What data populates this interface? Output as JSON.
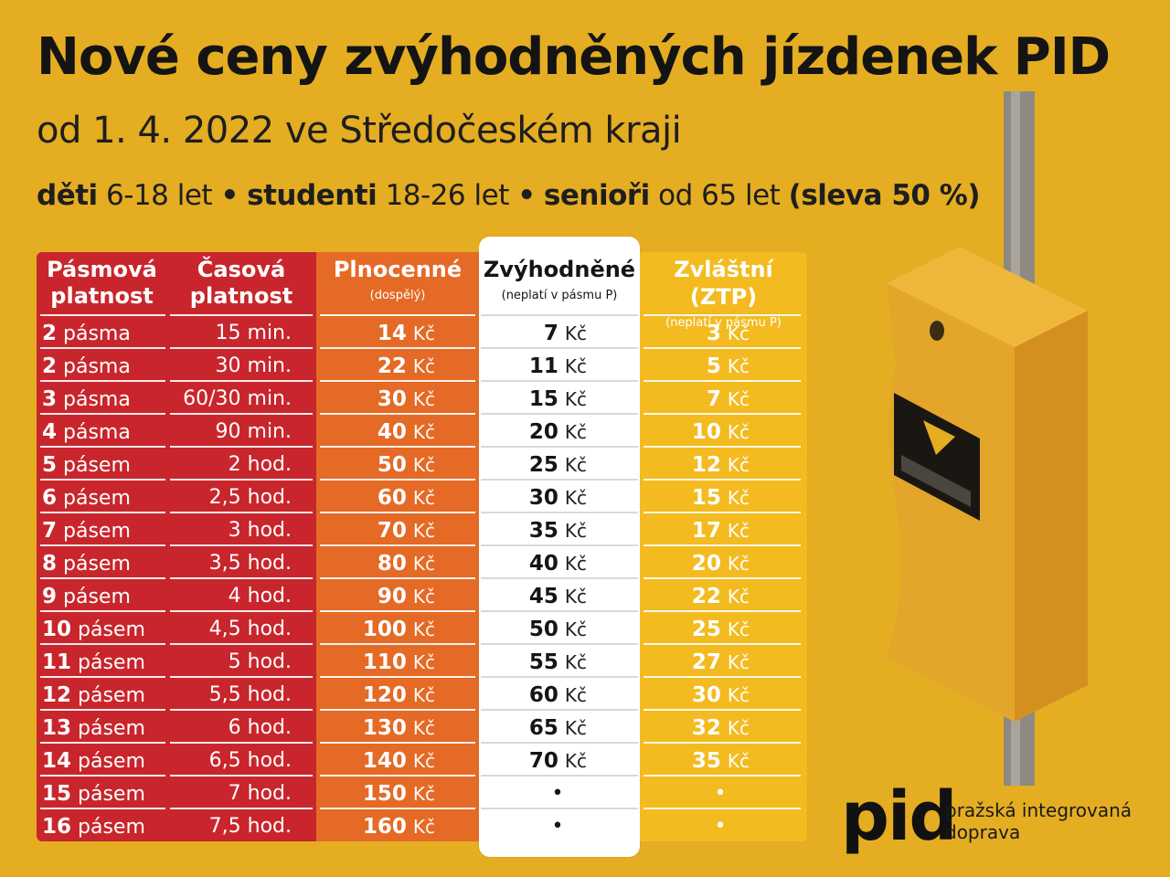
{
  "title": "Nové ceny zvýhodněných jízdenek PID",
  "subtitle": "od 1. 4. 2022 ve Středočeském kraji",
  "groups": {
    "kids_label": "děti",
    "kids_range": "6-18 let",
    "bullet": "•",
    "students_label": "studenti",
    "students_range": "18-26 let",
    "seniors_label": "senioři",
    "seniors_range": "od 65 let",
    "discount": "(sleva 50 %)"
  },
  "table": {
    "headers": {
      "zone": "Pásmová platnost",
      "time": "Časová platnost",
      "full": "Plnocenné",
      "full_note": "(dospělý)",
      "reduced": "Zvýhodněné",
      "reduced_note": "(neplatí v pásmu P)",
      "ztp": "Zvláštní (ZTP)",
      "ztp_note": "(neplatí v pásmu P)"
    },
    "currency": "Kč",
    "rows": [
      {
        "zones": "2",
        "zone_word": "pásma",
        "time": "15 min.",
        "full": "14",
        "reduced": "7",
        "ztp": "3"
      },
      {
        "zones": "2",
        "zone_word": "pásma",
        "time": "30 min.",
        "full": "22",
        "reduced": "11",
        "ztp": "5"
      },
      {
        "zones": "3",
        "zone_word": "pásma",
        "time": "60/30 min.",
        "full": "30",
        "reduced": "15",
        "ztp": "7"
      },
      {
        "zones": "4",
        "zone_word": "pásma",
        "time": "90 min.",
        "full": "40",
        "reduced": "20",
        "ztp": "10"
      },
      {
        "zones": "5",
        "zone_word": "pásem",
        "time": "2 hod.",
        "full": "50",
        "reduced": "25",
        "ztp": "12"
      },
      {
        "zones": "6",
        "zone_word": "pásem",
        "time": "2,5 hod.",
        "full": "60",
        "reduced": "30",
        "ztp": "15"
      },
      {
        "zones": "7",
        "zone_word": "pásem",
        "time": "3 hod.",
        "full": "70",
        "reduced": "35",
        "ztp": "17"
      },
      {
        "zones": "8",
        "zone_word": "pásem",
        "time": "3,5 hod.",
        "full": "80",
        "reduced": "40",
        "ztp": "20"
      },
      {
        "zones": "9",
        "zone_word": "pásem",
        "time": "4 hod.",
        "full": "90",
        "reduced": "45",
        "ztp": "22"
      },
      {
        "zones": "10",
        "zone_word": "pásem",
        "time": "4,5 hod.",
        "full": "100",
        "reduced": "50",
        "ztp": "25"
      },
      {
        "zones": "11",
        "zone_word": "pásem",
        "time": "5 hod.",
        "full": "110",
        "reduced": "55",
        "ztp": "27"
      },
      {
        "zones": "12",
        "zone_word": "pásem",
        "time": "5,5 hod.",
        "full": "120",
        "reduced": "60",
        "ztp": "30"
      },
      {
        "zones": "13",
        "zone_word": "pásem",
        "time": "6 hod.",
        "full": "130",
        "reduced": "65",
        "ztp": "32"
      },
      {
        "zones": "14",
        "zone_word": "pásem",
        "time": "6,5 hod.",
        "full": "140",
        "reduced": "70",
        "ztp": "35"
      },
      {
        "zones": "15",
        "zone_word": "pásem",
        "time": "7 hod.",
        "full": "150",
        "reduced": "•",
        "ztp": "•"
      },
      {
        "zones": "16",
        "zone_word": "pásem",
        "time": "7,5 hod.",
        "full": "160",
        "reduced": "•",
        "ztp": "•"
      }
    ]
  },
  "logo": {
    "mark": "pid",
    "tagline_line1": "pražská integrovaná",
    "tagline_line2": "doprava"
  },
  "colors": {
    "background": "#e4ad22",
    "red": "#c8262c",
    "orange": "#e46a25",
    "white": "#ffffff",
    "yellow": "#f3bb1f"
  },
  "icons": {
    "validator": "ticket-validator-icon"
  }
}
